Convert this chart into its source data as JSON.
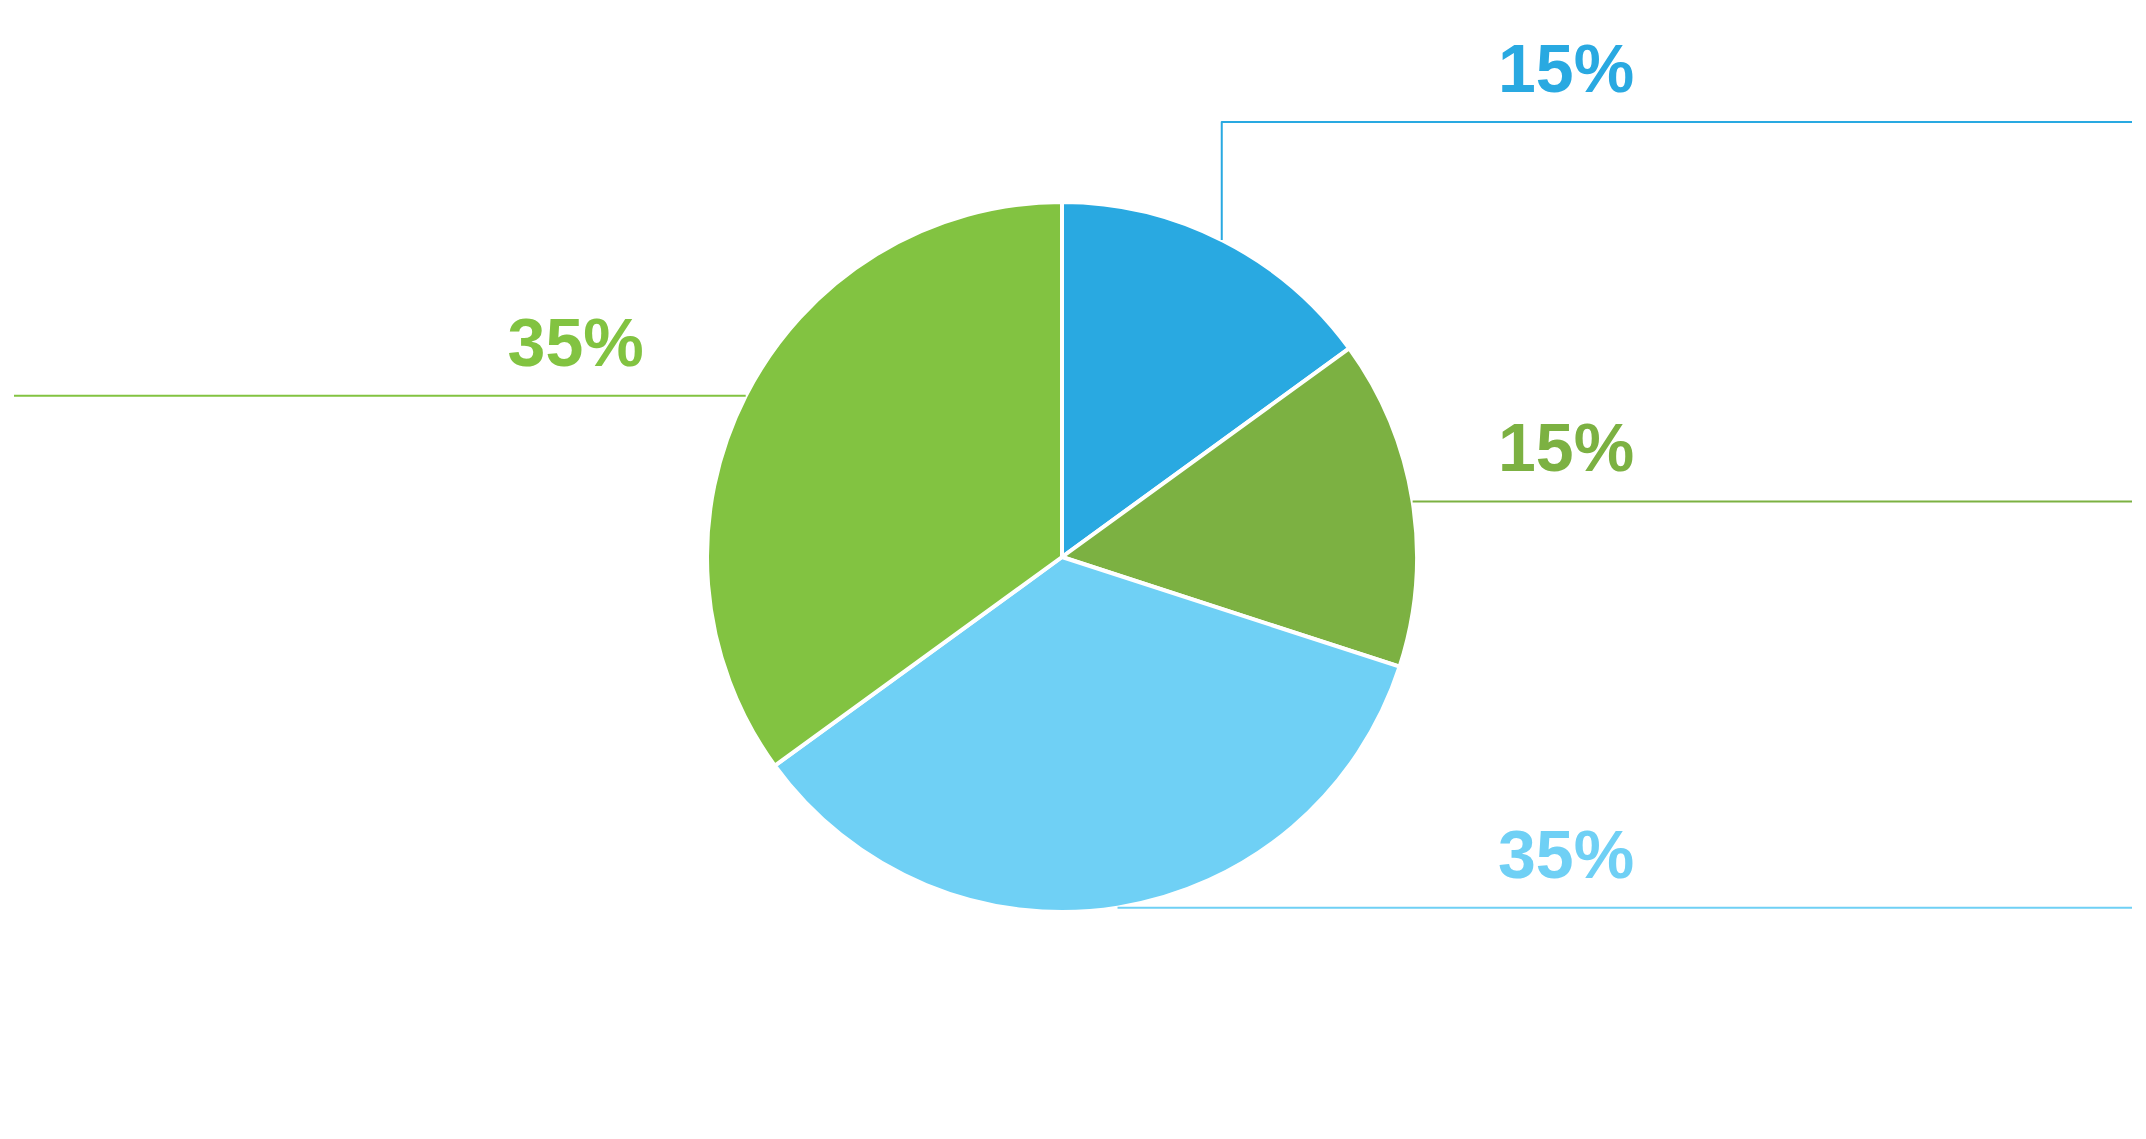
{
  "chart_data": {
    "type": "pie",
    "categories": [
      null,
      null,
      null,
      null
    ],
    "values": [
      15,
      15,
      35,
      35
    ],
    "colors": [
      "#29a9e1",
      "#7cb142",
      "#6fd0f5",
      "#82c341"
    ],
    "value_labels": [
      "15%",
      "15%",
      "35%",
      "35%"
    ],
    "legend": false
  }
}
